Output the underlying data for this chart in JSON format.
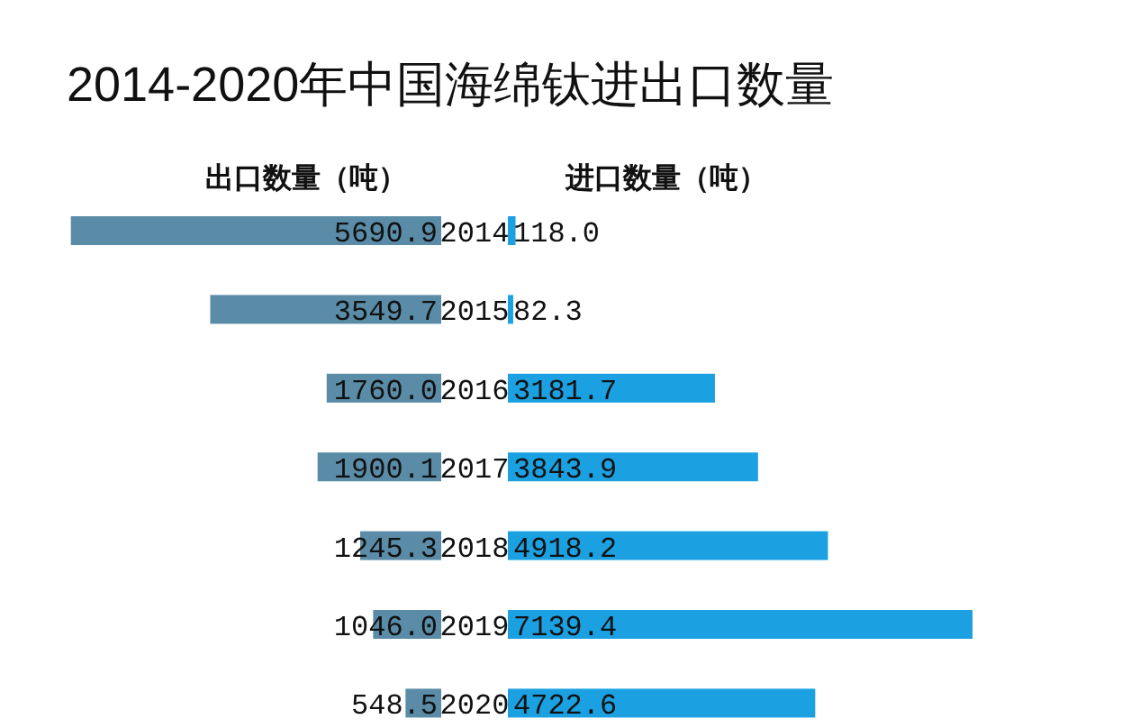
{
  "chart_data": [
    {
      "type": "bar",
      "orientation": "horizontal",
      "title": "2014-2020年中国海绵钛进出口数量",
      "subtitle": "出口数量（吨）",
      "categories": [
        "2014",
        "2015",
        "2016",
        "2017",
        "2018",
        "2019",
        "2020"
      ],
      "series": [
        {
          "color": "#5a8ca8",
          "values": [
            5690.9,
            3549.7,
            1760.0,
            1900.1,
            1245.3,
            1046.0,
            548.5
          ],
          "value_labels": [
            "5690.9",
            "3549.7",
            "1760.0",
            "1900.1",
            "1245.3",
            "1046.0",
            "548.5"
          ]
        }
      ]
    },
    {
      "type": "bar",
      "orientation": "horizontal",
      "subtitle": "进口数量（吨）",
      "categories": [
        null,
        null,
        null,
        null,
        null,
        null,
        null
      ],
      "series": [
        {
          "color": "#1ba1e2",
          "values": [
            118.0,
            82.3,
            3181.7,
            3843.9,
            4918.2,
            7139.4,
            4722.6
          ],
          "value_labels": [
            "118.0",
            "82.3",
            "3181.7",
            "3843.9",
            "4918.2",
            "7139.4",
            "4722.6"
          ]
        }
      ]
    }
  ]
}
